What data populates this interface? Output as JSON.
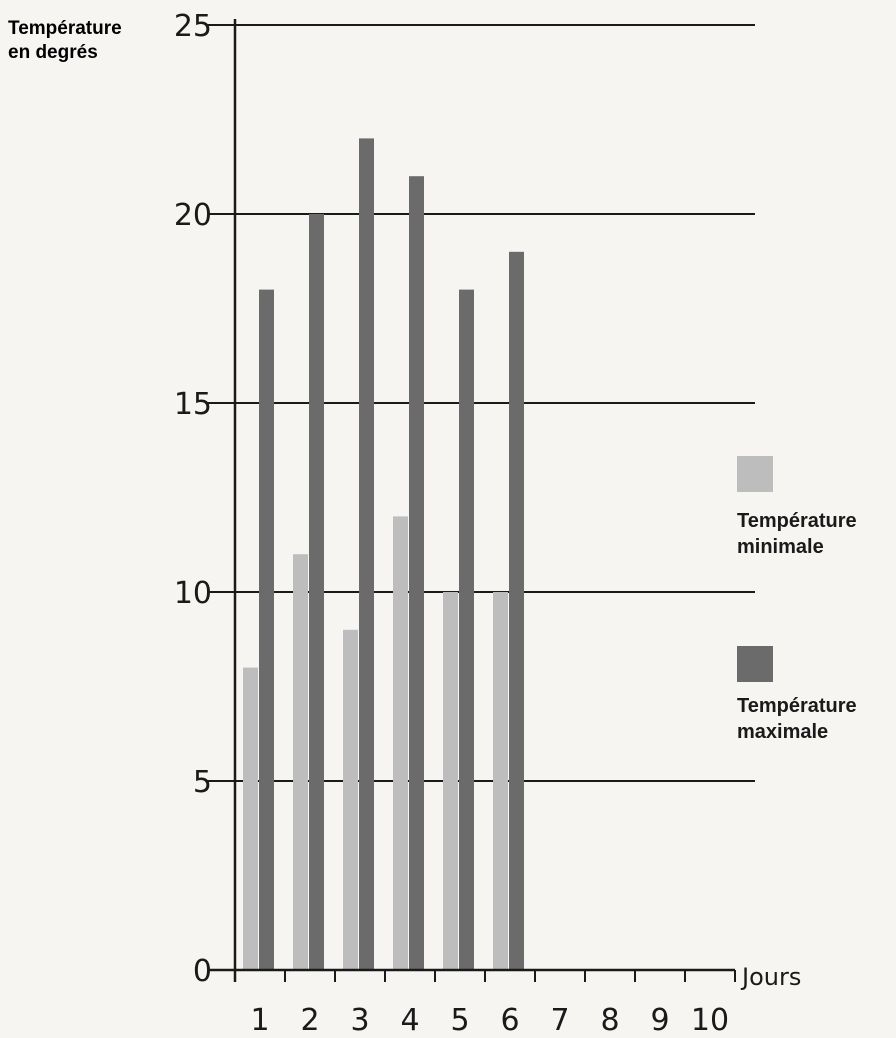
{
  "chart_data": {
    "type": "bar",
    "ylabel_lines": [
      "Température",
      "en degrés"
    ],
    "xlabel": "Jours",
    "ylim": [
      0,
      25
    ],
    "yticks": [
      0,
      5,
      10,
      15,
      20,
      25
    ],
    "grid": true,
    "legend_position": "right",
    "categories": [
      "1",
      "2",
      "3",
      "4",
      "5",
      "6",
      "7",
      "8",
      "9",
      "10"
    ],
    "series": [
      {
        "name_lines": [
          "Température",
          "minimale"
        ],
        "color": "#bdbdbd",
        "values": [
          8,
          11,
          9,
          12,
          10,
          10,
          null,
          null,
          null,
          null
        ]
      },
      {
        "name_lines": [
          "Température",
          "maximale"
        ],
        "color": "#6b6b6b",
        "values": [
          18,
          20,
          22,
          21,
          18,
          19,
          null,
          null,
          null,
          null
        ]
      }
    ]
  }
}
